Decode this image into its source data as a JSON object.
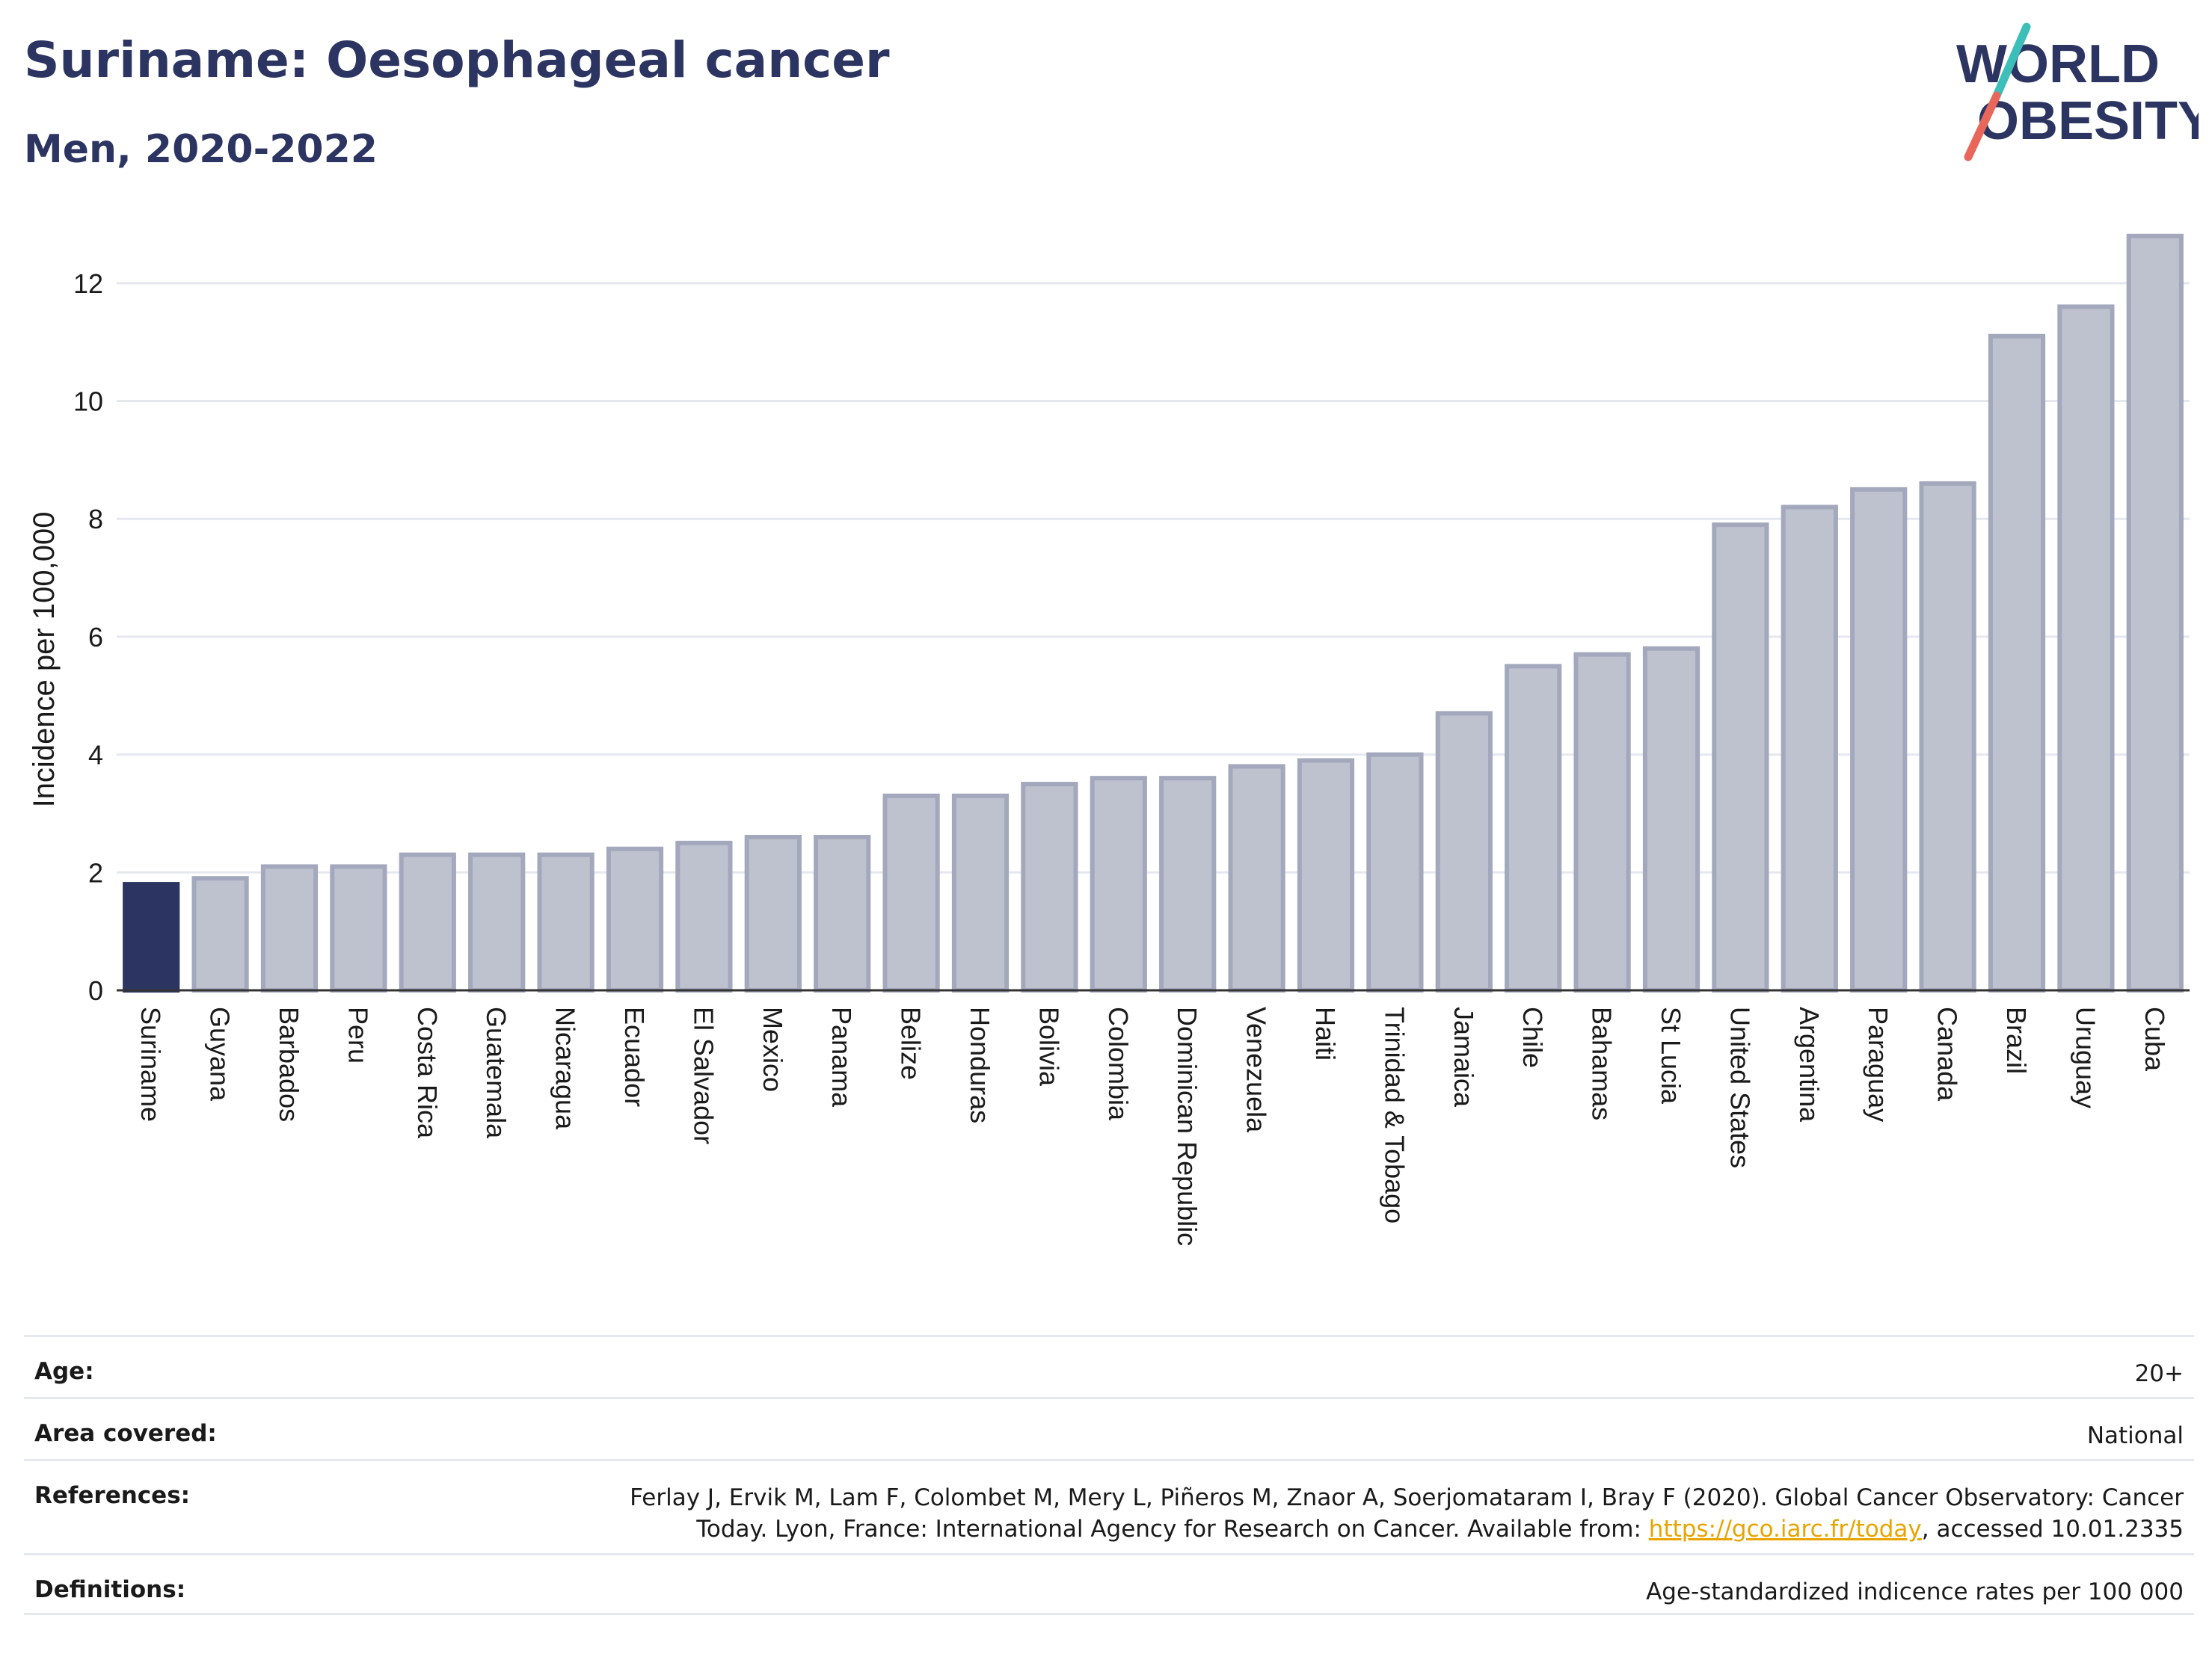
{
  "header": {
    "title": "Suriname: Oesophageal cancer",
    "subtitle": "Men, 2020-2022"
  },
  "logo": {
    "line1": "WORLD",
    "line2": "OBESITY",
    "text_color": "#2c3561",
    "slash_top_color": "#3bbfb8",
    "slash_bottom_color": "#e8675a"
  },
  "chart_data": {
    "type": "bar",
    "ylabel": "Incidence per 100,000",
    "ylim": [
      0,
      13
    ],
    "yticks": [
      0,
      2,
      4,
      6,
      8,
      10,
      12
    ],
    "grid": true,
    "highlight": "Suriname",
    "highlight_color": "#2c3561",
    "bar_color": "#bec2cf",
    "bar_edge_color": "#a3a8bd",
    "categories": [
      "Suriname",
      "Guyana",
      "Barbados",
      "Peru",
      "Costa Rica",
      "Guatemala",
      "Nicaragua",
      "Ecuador",
      "El Salvador",
      "Mexico",
      "Panama",
      "Belize",
      "Honduras",
      "Bolivia",
      "Colombia",
      "Dominican Republic",
      "Venezuela",
      "Haiti",
      "Trinidad & Tobago",
      "Jamaica",
      "Chile",
      "Bahamas",
      "St Lucia",
      "United States",
      "Argentina",
      "Paraguay",
      "Canada",
      "Brazil",
      "Uruguay",
      "Cuba"
    ],
    "values": [
      1.8,
      1.9,
      2.1,
      2.1,
      2.3,
      2.3,
      2.3,
      2.4,
      2.5,
      2.6,
      2.6,
      3.3,
      3.3,
      3.5,
      3.6,
      3.6,
      3.8,
      3.9,
      4.0,
      4.7,
      5.5,
      5.7,
      5.8,
      7.9,
      8.2,
      8.5,
      8.6,
      11.1,
      11.6,
      12.8
    ]
  },
  "meta": {
    "age_label": "Age:",
    "age_value": "20+",
    "area_label": "Area covered:",
    "area_value": "National",
    "references_label": "References:",
    "references_line1": "Ferlay J, Ervik M, Lam F, Colombet M, Mery L, Piñeros M, Znaor A, Soerjomataram I, Bray F (2020). Global Cancer Observatory: Cancer",
    "references_line2_pre": "Today. Lyon, France: International Agency for Research on Cancer. Available from: ",
    "references_link": "https://gco.iarc.fr/today",
    "references_line2_post": ", accessed 10.01.2335",
    "definitions_label": "Definitions:",
    "definitions_value": "Age-standardized indicence rates per 100 000"
  }
}
